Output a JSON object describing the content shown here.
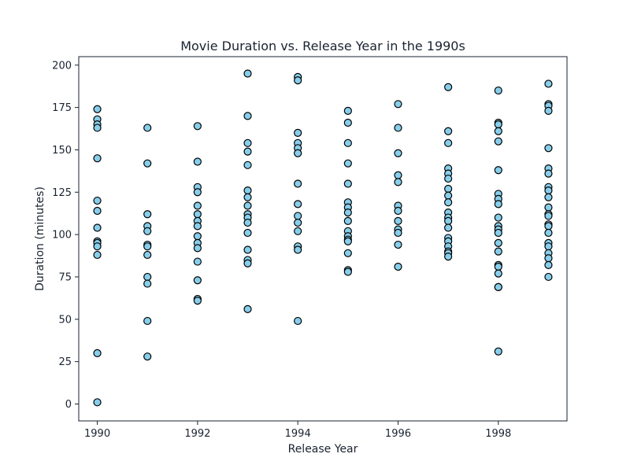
{
  "chart_data": {
    "type": "scatter",
    "title": "Movie Duration vs. Release Year in the 1990s",
    "xlabel": "Release Year",
    "ylabel": "Duration (minutes)",
    "xlim": [
      1989.63,
      1999.37
    ],
    "ylim": [
      -10,
      205
    ],
    "xticks": [
      1990,
      1992,
      1994,
      1996,
      1998
    ],
    "yticks": [
      0,
      25,
      50,
      75,
      100,
      125,
      150,
      175,
      200
    ],
    "grid": false,
    "marker_color": "#87CEEB",
    "marker_edge_color": "#000000",
    "points": [
      {
        "x": 1990,
        "y": 174
      },
      {
        "x": 1990,
        "y": 168
      },
      {
        "x": 1990,
        "y": 165
      },
      {
        "x": 1990,
        "y": 163
      },
      {
        "x": 1990,
        "y": 145
      },
      {
        "x": 1990,
        "y": 120
      },
      {
        "x": 1990,
        "y": 114
      },
      {
        "x": 1990,
        "y": 104
      },
      {
        "x": 1990,
        "y": 96
      },
      {
        "x": 1990,
        "y": 95
      },
      {
        "x": 1990,
        "y": 93
      },
      {
        "x": 1990,
        "y": 88
      },
      {
        "x": 1990,
        "y": 30
      },
      {
        "x": 1990,
        "y": 1
      },
      {
        "x": 1991,
        "y": 163
      },
      {
        "x": 1991,
        "y": 142
      },
      {
        "x": 1991,
        "y": 112
      },
      {
        "x": 1991,
        "y": 105
      },
      {
        "x": 1991,
        "y": 102
      },
      {
        "x": 1991,
        "y": 94
      },
      {
        "x": 1991,
        "y": 93
      },
      {
        "x": 1991,
        "y": 88
      },
      {
        "x": 1991,
        "y": 75
      },
      {
        "x": 1991,
        "y": 71
      },
      {
        "x": 1991,
        "y": 49
      },
      {
        "x": 1991,
        "y": 28
      },
      {
        "x": 1992,
        "y": 164
      },
      {
        "x": 1992,
        "y": 143
      },
      {
        "x": 1992,
        "y": 128
      },
      {
        "x": 1992,
        "y": 125
      },
      {
        "x": 1992,
        "y": 117
      },
      {
        "x": 1992,
        "y": 112
      },
      {
        "x": 1992,
        "y": 108
      },
      {
        "x": 1992,
        "y": 105
      },
      {
        "x": 1992,
        "y": 99
      },
      {
        "x": 1992,
        "y": 95
      },
      {
        "x": 1992,
        "y": 92
      },
      {
        "x": 1992,
        "y": 84
      },
      {
        "x": 1992,
        "y": 73
      },
      {
        "x": 1992,
        "y": 62
      },
      {
        "x": 1992,
        "y": 61
      },
      {
        "x": 1993,
        "y": 195
      },
      {
        "x": 1993,
        "y": 170
      },
      {
        "x": 1993,
        "y": 154
      },
      {
        "x": 1993,
        "y": 149
      },
      {
        "x": 1993,
        "y": 141
      },
      {
        "x": 1993,
        "y": 126
      },
      {
        "x": 1993,
        "y": 122
      },
      {
        "x": 1993,
        "y": 117
      },
      {
        "x": 1993,
        "y": 112
      },
      {
        "x": 1993,
        "y": 110
      },
      {
        "x": 1993,
        "y": 107
      },
      {
        "x": 1993,
        "y": 101
      },
      {
        "x": 1993,
        "y": 91
      },
      {
        "x": 1993,
        "y": 85
      },
      {
        "x": 1993,
        "y": 83
      },
      {
        "x": 1993,
        "y": 56
      },
      {
        "x": 1994,
        "y": 193
      },
      {
        "x": 1994,
        "y": 191
      },
      {
        "x": 1994,
        "y": 160
      },
      {
        "x": 1994,
        "y": 154
      },
      {
        "x": 1994,
        "y": 151
      },
      {
        "x": 1994,
        "y": 148
      },
      {
        "x": 1994,
        "y": 130
      },
      {
        "x": 1994,
        "y": 118
      },
      {
        "x": 1994,
        "y": 111
      },
      {
        "x": 1994,
        "y": 107
      },
      {
        "x": 1994,
        "y": 102
      },
      {
        "x": 1994,
        "y": 93
      },
      {
        "x": 1994,
        "y": 91
      },
      {
        "x": 1994,
        "y": 49
      },
      {
        "x": 1995,
        "y": 173
      },
      {
        "x": 1995,
        "y": 166
      },
      {
        "x": 1995,
        "y": 154
      },
      {
        "x": 1995,
        "y": 142
      },
      {
        "x": 1995,
        "y": 130
      },
      {
        "x": 1995,
        "y": 119
      },
      {
        "x": 1995,
        "y": 116
      },
      {
        "x": 1995,
        "y": 113
      },
      {
        "x": 1995,
        "y": 108
      },
      {
        "x": 1995,
        "y": 102
      },
      {
        "x": 1995,
        "y": 99
      },
      {
        "x": 1995,
        "y": 97
      },
      {
        "x": 1995,
        "y": 96
      },
      {
        "x": 1995,
        "y": 89
      },
      {
        "x": 1995,
        "y": 79
      },
      {
        "x": 1995,
        "y": 78
      },
      {
        "x": 1996,
        "y": 177
      },
      {
        "x": 1996,
        "y": 163
      },
      {
        "x": 1996,
        "y": 148
      },
      {
        "x": 1996,
        "y": 135
      },
      {
        "x": 1996,
        "y": 131
      },
      {
        "x": 1996,
        "y": 117
      },
      {
        "x": 1996,
        "y": 114
      },
      {
        "x": 1996,
        "y": 108
      },
      {
        "x": 1996,
        "y": 103
      },
      {
        "x": 1996,
        "y": 101
      },
      {
        "x": 1996,
        "y": 94
      },
      {
        "x": 1996,
        "y": 81
      },
      {
        "x": 1997,
        "y": 187
      },
      {
        "x": 1997,
        "y": 161
      },
      {
        "x": 1997,
        "y": 154
      },
      {
        "x": 1997,
        "y": 139
      },
      {
        "x": 1997,
        "y": 136
      },
      {
        "x": 1997,
        "y": 133
      },
      {
        "x": 1997,
        "y": 127
      },
      {
        "x": 1997,
        "y": 123
      },
      {
        "x": 1997,
        "y": 119
      },
      {
        "x": 1997,
        "y": 113
      },
      {
        "x": 1997,
        "y": 110
      },
      {
        "x": 1997,
        "y": 108
      },
      {
        "x": 1997,
        "y": 104
      },
      {
        "x": 1997,
        "y": 98
      },
      {
        "x": 1997,
        "y": 96
      },
      {
        "x": 1997,
        "y": 93
      },
      {
        "x": 1997,
        "y": 90
      },
      {
        "x": 1997,
        "y": 89
      },
      {
        "x": 1997,
        "y": 87
      },
      {
        "x": 1998,
        "y": 185
      },
      {
        "x": 1998,
        "y": 166
      },
      {
        "x": 1998,
        "y": 165
      },
      {
        "x": 1998,
        "y": 161
      },
      {
        "x": 1998,
        "y": 155
      },
      {
        "x": 1998,
        "y": 138
      },
      {
        "x": 1998,
        "y": 124
      },
      {
        "x": 1998,
        "y": 121
      },
      {
        "x": 1998,
        "y": 118
      },
      {
        "x": 1998,
        "y": 110
      },
      {
        "x": 1998,
        "y": 105
      },
      {
        "x": 1998,
        "y": 103
      },
      {
        "x": 1998,
        "y": 101
      },
      {
        "x": 1998,
        "y": 95
      },
      {
        "x": 1998,
        "y": 90
      },
      {
        "x": 1998,
        "y": 82
      },
      {
        "x": 1998,
        "y": 81
      },
      {
        "x": 1998,
        "y": 77
      },
      {
        "x": 1998,
        "y": 69
      },
      {
        "x": 1998,
        "y": 69
      },
      {
        "x": 1998,
        "y": 31
      },
      {
        "x": 1999,
        "y": 189
      },
      {
        "x": 1999,
        "y": 177
      },
      {
        "x": 1999,
        "y": 176
      },
      {
        "x": 1999,
        "y": 173
      },
      {
        "x": 1999,
        "y": 151
      },
      {
        "x": 1999,
        "y": 139
      },
      {
        "x": 1999,
        "y": 136
      },
      {
        "x": 1999,
        "y": 128
      },
      {
        "x": 1999,
        "y": 126
      },
      {
        "x": 1999,
        "y": 122
      },
      {
        "x": 1999,
        "y": 116
      },
      {
        "x": 1999,
        "y": 112
      },
      {
        "x": 1999,
        "y": 111
      },
      {
        "x": 1999,
        "y": 106
      },
      {
        "x": 1999,
        "y": 105
      },
      {
        "x": 1999,
        "y": 101
      },
      {
        "x": 1999,
        "y": 95
      },
      {
        "x": 1999,
        "y": 93
      },
      {
        "x": 1999,
        "y": 89
      },
      {
        "x": 1999,
        "y": 86
      },
      {
        "x": 1999,
        "y": 82
      },
      {
        "x": 1999,
        "y": 75
      }
    ]
  }
}
